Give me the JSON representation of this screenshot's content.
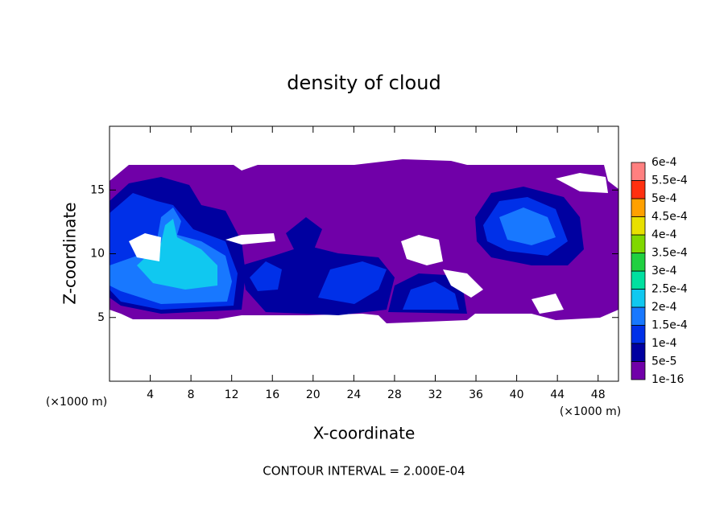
{
  "chart_data": {
    "type": "contour",
    "title": "density of cloud",
    "x_label": "X-coordinate",
    "y_label": "Z-coordinate",
    "x_unit": "(×1000 m)",
    "footer": "CONTOUR INTERVAL = 2.000E-04",
    "xlim": [
      0,
      50
    ],
    "xticks": [
      4,
      8,
      12,
      16,
      20,
      24,
      28,
      32,
      36,
      40,
      44,
      48
    ],
    "ylim": [
      0,
      20
    ],
    "yticks": [
      5,
      10,
      15
    ],
    "colorbar": {
      "ticks": [
        {
          "value": 1e-16,
          "label": "1e-16"
        },
        {
          "value": 5e-05,
          "label": "5e-5"
        },
        {
          "value": 0.0001,
          "label": "1e-4"
        },
        {
          "value": 0.00015,
          "label": "1.5e-4"
        },
        {
          "value": 0.0002,
          "label": "2e-4"
        },
        {
          "value": 0.00025,
          "label": "2.5e-4"
        },
        {
          "value": 0.0003,
          "label": "3e-4"
        },
        {
          "value": 0.00035,
          "label": "3.5e-4"
        },
        {
          "value": 0.0004,
          "label": "4e-4"
        },
        {
          "value": 0.00045,
          "label": "4.5e-4"
        },
        {
          "value": 0.0005,
          "label": "5e-4"
        },
        {
          "value": 0.00055,
          "label": "5.5e-4"
        },
        {
          "value": 0.0006,
          "label": "6e-4"
        }
      ],
      "colors": [
        "#7000a8",
        "#0000a0",
        "#0030e8",
        "#1878ff",
        "#10c8f0",
        "#00e0a0",
        "#20d040",
        "#80d800",
        "#e8e000",
        "#ffa000",
        "#ff3010",
        "#ff8080"
      ]
    }
  }
}
